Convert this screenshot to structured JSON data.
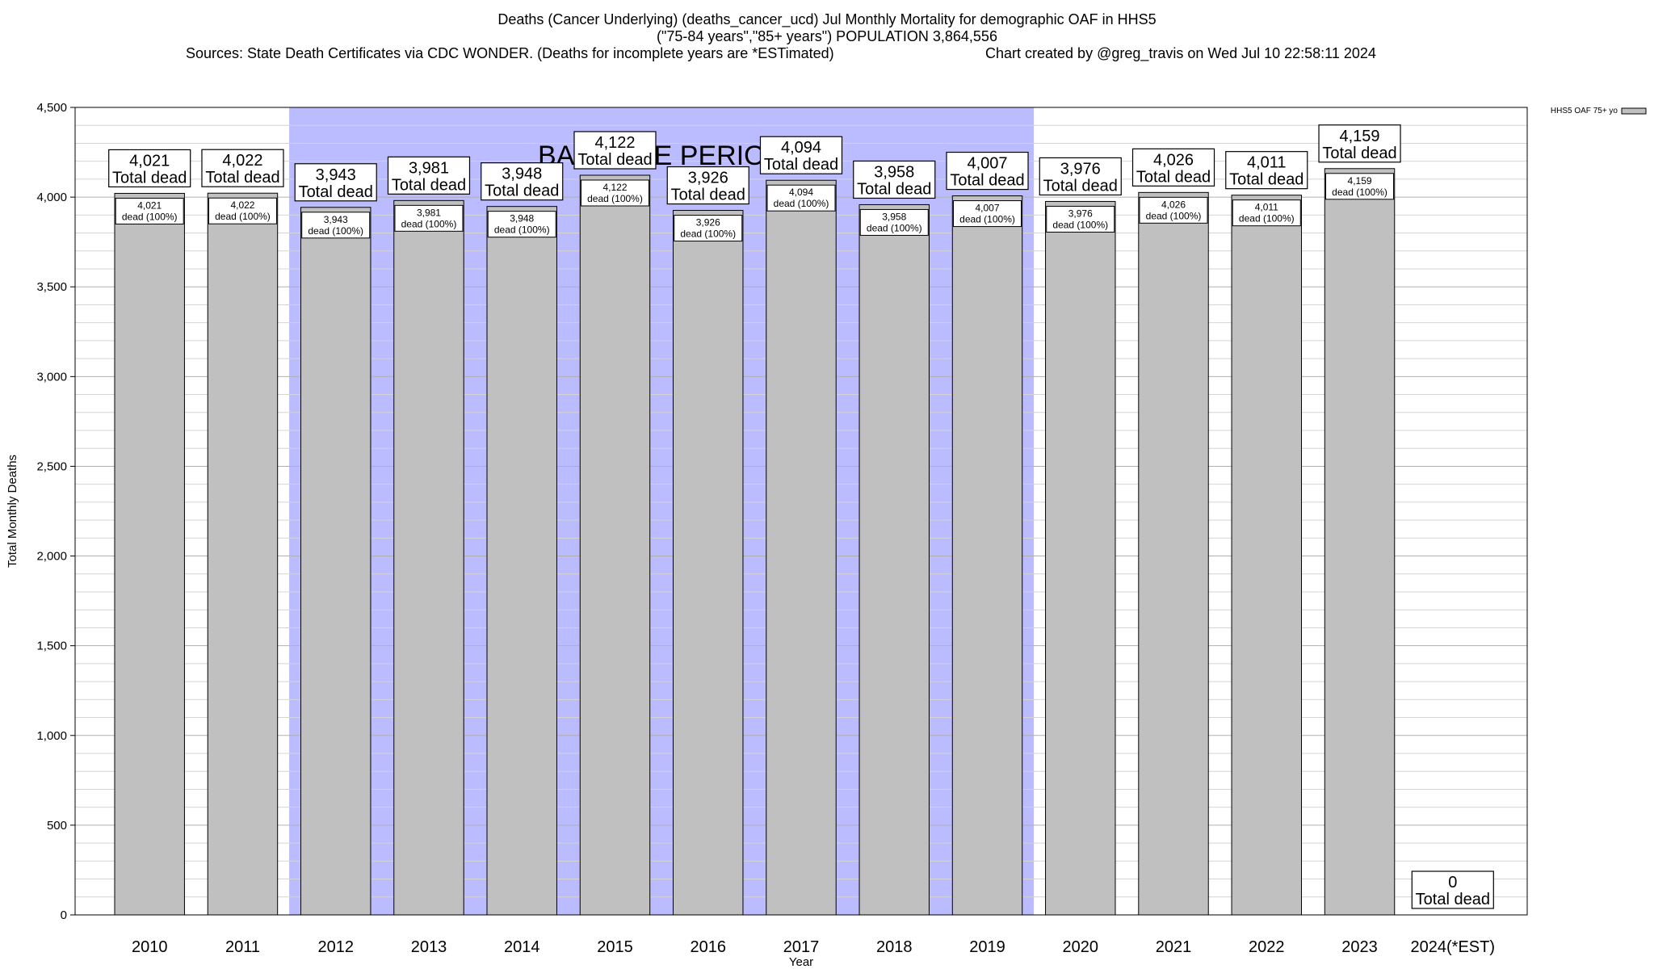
{
  "chart_data": {
    "type": "bar",
    "title_line1": "Deaths (Cancer Underlying) (deaths_cancer_ucd) Jul Monthly Mortality for demographic OAF in HHS5",
    "title_line2": "(\"75-84 years\",\"85+ years\") POPULATION 3,864,556",
    "sources": "Sources: State Death Certificates via CDC WONDER. (Deaths for incomplete years are *ESTimated)",
    "credit": "Chart created by @greg_travis on Wed Jul 10 22:58:11 2024",
    "xlabel": "Year",
    "ylabel": "Total Monthly Deaths",
    "ylim": [
      0,
      4500
    ],
    "y_ticks": [
      0,
      500,
      1000,
      1500,
      2000,
      2500,
      3000,
      3500,
      4000,
      4500
    ],
    "y_tick_labels": [
      "0",
      "500",
      "1,000",
      "1,500",
      "2,000",
      "2,500",
      "3,000",
      "3,500",
      "4,000",
      "4,500"
    ],
    "categories": [
      "2010",
      "2011",
      "2012",
      "2013",
      "2014",
      "2015",
      "2016",
      "2017",
      "2018",
      "2019",
      "2020",
      "2021",
      "2022",
      "2023",
      "2024(*EST)"
    ],
    "series": [
      {
        "name": "HHS5 OAF 75+ yo",
        "color": "#c0c0c0",
        "values": [
          4021,
          4022,
          3943,
          3981,
          3948,
          4122,
          3926,
          4094,
          3958,
          4007,
          3976,
          4026,
          4011,
          4159,
          0
        ],
        "value_labels": [
          "4,021",
          "4,022",
          "3,943",
          "3,981",
          "3,948",
          "4,122",
          "3,926",
          "4,094",
          "3,958",
          "4,007",
          "3,976",
          "4,026",
          "4,011",
          "4,159",
          "0"
        ]
      }
    ],
    "total_label": "Total dead",
    "inner_label": "dead (100%)",
    "baseline": {
      "label": "BASELINE PERIOD",
      "start": "2012",
      "end": "2019",
      "color": "#bbbbff"
    },
    "grid": true,
    "legend_position": "top-right"
  }
}
